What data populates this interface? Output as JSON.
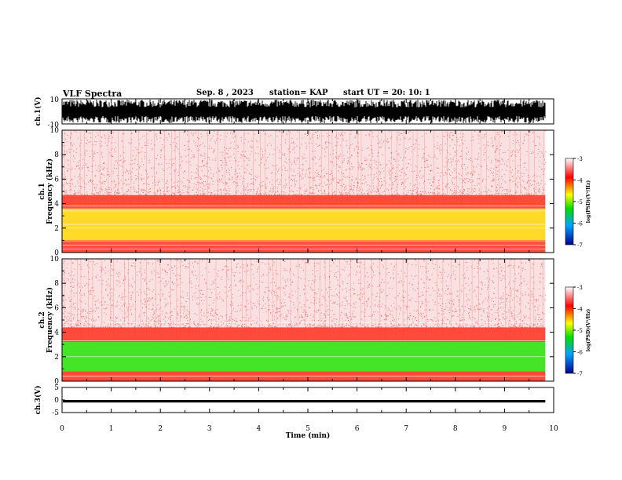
{
  "header": {
    "title": "VLF Spectra",
    "date": "Sep. 8 , 2023",
    "station": "station= KAP",
    "start": "start UT = 20: 10: 1"
  },
  "colors": {
    "spectrogram_bg": "#ffffff",
    "low": "#f4c8c8",
    "mid": "#ff2a1a",
    "high": "#ffd400",
    "peak": "#22e000",
    "waveform": "#000000"
  },
  "chart_data": [
    {
      "type": "line",
      "panel": "ch.1 waveform",
      "ylabel": "ch.1(V)",
      "ylim": [
        -10,
        10
      ],
      "yticks": [
        "10",
        "-10"
      ],
      "xlim": [
        0,
        10
      ],
      "series": [
        {
          "values_description_free": true,
          "amplitude_range": [
            -10,
            10
          ]
        }
      ]
    },
    {
      "type": "heatmap",
      "panel": "ch.1 spectrogram",
      "ylabel": "ch.1\nFrequency (kHz)",
      "ylabel_line1": "ch.1",
      "ylabel_line2": "Frequency (kHz)",
      "ylim": [
        0,
        10
      ],
      "yticks": [
        "0",
        "2",
        "4",
        "6",
        "8",
        "10"
      ],
      "xlim": [
        0,
        10
      ],
      "bands": [
        {
          "f0": 0,
          "f1": 1.0,
          "level": "mid"
        },
        {
          "f0": 1.0,
          "f1": 3.6,
          "level": "high"
        },
        {
          "f0": 3.6,
          "f1": 4.7,
          "level": "mid"
        },
        {
          "f0": 4.7,
          "f1": 10,
          "level": "low"
        }
      ],
      "lines_khz": [
        0.3,
        0.6,
        0.9,
        2.0,
        2.3,
        3.4,
        3.8
      ],
      "colorbar": {
        "label": "log(PSD)(V²/Hz)",
        "min": -7,
        "max": -3,
        "ticks": [
          "-3",
          "-4",
          "-5",
          "-6",
          "-7"
        ]
      }
    },
    {
      "type": "heatmap",
      "panel": "ch.2 spectrogram",
      "ylabel_line1": "ch.2",
      "ylabel_line2": "Frequency (kHz)",
      "ylim": [
        0,
        10
      ],
      "yticks": [
        "0",
        "2",
        "4",
        "6",
        "8",
        "10"
      ],
      "xlim": [
        0,
        10
      ],
      "bands": [
        {
          "f0": 0,
          "f1": 0.8,
          "level": "mid"
        },
        {
          "f0": 0.8,
          "f1": 3.2,
          "level": "peak"
        },
        {
          "f0": 3.2,
          "f1": 4.4,
          "level": "mid"
        },
        {
          "f0": 4.4,
          "f1": 10,
          "level": "low"
        }
      ],
      "lines_khz": [
        0.4,
        2.0,
        3.3,
        4.8
      ],
      "colorbar": {
        "label": "log(PSD)(V²/Hz)",
        "min": -7,
        "max": -3,
        "ticks": [
          "-3",
          "-4",
          "-5",
          "-6",
          "-7"
        ]
      }
    },
    {
      "type": "line",
      "panel": "ch.3 waveform",
      "ylabel": "ch.3(V)",
      "ylim": [
        -5,
        5
      ],
      "yticks": [
        "5",
        "0",
        "-5"
      ],
      "xlim": [
        0,
        10
      ],
      "series": [
        {
          "level_V": -0.5,
          "amplitude_V": 0.5
        }
      ]
    }
  ],
  "xaxis": {
    "label": "Time (min)",
    "ticks": [
      "0",
      "1",
      "2",
      "3",
      "4",
      "5",
      "6",
      "7",
      "8",
      "9",
      "10"
    ],
    "data_end_min": 9.83
  }
}
